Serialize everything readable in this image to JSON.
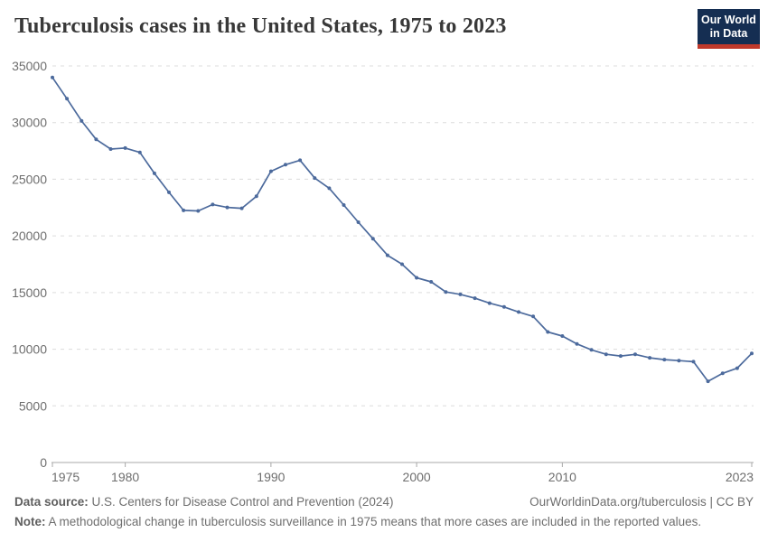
{
  "header": {
    "title": "Tuberculosis cases in the United States, 1975 to 2023",
    "logo": {
      "line1": "Our World",
      "line2": "in Data"
    }
  },
  "colors": {
    "line": "#4C6A9C",
    "logo_bg": "#152e52",
    "logo_accent": "#c0392b"
  },
  "chart_data": {
    "type": "line",
    "title": "Tuberculosis cases in the United States, 1975 to 2023",
    "xlabel": "",
    "ylabel": "",
    "xlim": [
      1975,
      2023
    ],
    "ylim": [
      0,
      35000
    ],
    "xticks": [
      1975,
      1980,
      1990,
      2000,
      2010,
      2023
    ],
    "yticks": [
      0,
      5000,
      10000,
      15000,
      20000,
      25000,
      30000,
      35000
    ],
    "grid": "horizontal-dashed",
    "legend": "none",
    "x": [
      1975,
      1976,
      1977,
      1978,
      1979,
      1980,
      1981,
      1982,
      1983,
      1984,
      1985,
      1986,
      1987,
      1988,
      1989,
      1990,
      1991,
      1992,
      1993,
      1994,
      1995,
      1996,
      1997,
      1998,
      1999,
      2000,
      2001,
      2002,
      2003,
      2004,
      2005,
      2006,
      2007,
      2008,
      2009,
      2010,
      2011,
      2012,
      2013,
      2014,
      2015,
      2016,
      2017,
      2018,
      2019,
      2020,
      2021,
      2022,
      2023
    ],
    "series": [
      {
        "name": "United States",
        "values": [
          33989,
          32105,
          30145,
          28521,
          27669,
          27749,
          27373,
          25520,
          23846,
          22255,
          22201,
          22768,
          22517,
          22436,
          23495,
          25701,
          26283,
          26673,
          25102,
          24206,
          22726,
          21210,
          19751,
          18286,
          17499,
          16308,
          15945,
          15055,
          14835,
          14499,
          14063,
          13728,
          13281,
          12895,
          11520,
          11161,
          10471,
          9941,
          9550,
          9397,
          9541,
          9242,
          9081,
          8996,
          8895,
          7171,
          7866,
          8320,
          9633
        ]
      }
    ]
  },
  "footer": {
    "datasource_label": "Data source:",
    "datasource_text": " U.S. Centers for Disease Control and Prevention (2024)",
    "link_text": "OurWorldinData.org/tuberculosis | CC BY",
    "note_label": "Note:",
    "note_text": " A methodological change in tuberculosis surveillance in 1975 means that more cases are included in the reported values."
  }
}
